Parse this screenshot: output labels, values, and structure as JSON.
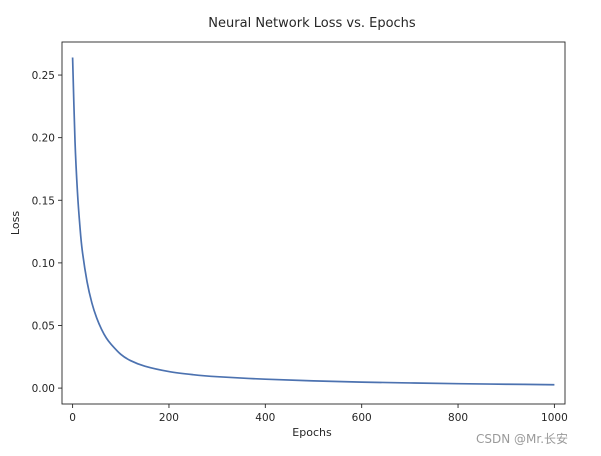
{
  "chart_data": {
    "type": "line",
    "title": "Neural Network Loss vs. Epochs",
    "xlabel": "Epochs",
    "ylabel": "Loss",
    "xlim": [
      -22,
      1022
    ],
    "ylim": [
      -0.0127,
      0.2764
    ],
    "xticks": [
      0,
      200,
      400,
      600,
      800,
      1000
    ],
    "xtick_labels": [
      "0",
      "200",
      "400",
      "600",
      "800",
      "1000"
    ],
    "yticks": [
      0.0,
      0.05,
      0.1,
      0.15,
      0.2,
      0.25
    ],
    "ytick_labels": [
      "0.00",
      "0.05",
      "0.10",
      "0.15",
      "0.20",
      "0.25"
    ],
    "grid": false,
    "legend": "none",
    "series": [
      {
        "color": "#4c72b0",
        "x": [
          0,
          5,
          10,
          15,
          20,
          30,
          40,
          50,
          60,
          70,
          80,
          100,
          120,
          150,
          200,
          250,
          300,
          400,
          500,
          600,
          700,
          800,
          900,
          1000
        ],
        "y": [
          0.264,
          0.197,
          0.157,
          0.13,
          0.11,
          0.085,
          0.068,
          0.056,
          0.047,
          0.04,
          0.035,
          0.027,
          0.022,
          0.0175,
          0.0132,
          0.0107,
          0.0091,
          0.0071,
          0.0058,
          0.0048,
          0.0041,
          0.0035,
          0.0031,
          0.0027
        ]
      }
    ]
  },
  "watermark": "CSDN @Mr.长安"
}
